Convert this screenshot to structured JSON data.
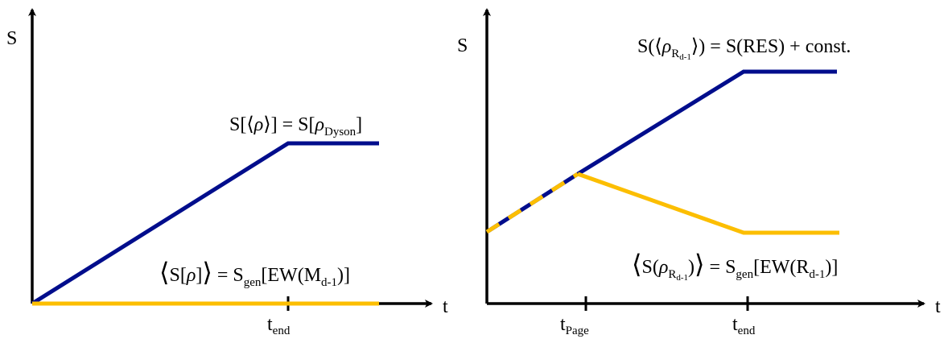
{
  "colors": {
    "axis": "#000000",
    "blue": "#000d8c",
    "gold": "#fcbe00"
  },
  "left_panel": {
    "y_axis_label": "S",
    "x_axis_label": "t",
    "tick_label": {
      "main": "t",
      "sub": "end"
    },
    "blue_label": {
      "a": "S[⟨",
      "rho": "ρ",
      "b": "⟩] = S[",
      "rho2": "ρ",
      "sub": "Dyson",
      "c": "]"
    },
    "gold_label": {
      "open": "⟨",
      "a": "S[",
      "rho": "ρ",
      "b": "]",
      "close": "⟩",
      "c": " = S",
      "sub1": "gen",
      "d": "[EW(M",
      "sub2": "d-1",
      "e": ")]"
    }
  },
  "right_panel": {
    "y_axis_label": "S",
    "x_axis_label": "t",
    "tick_page": {
      "main": "t",
      "sub": "Page"
    },
    "tick_end": {
      "main": "t",
      "sub": "end"
    },
    "blue_label": {
      "a": "S(⟨",
      "rho": "ρ",
      "sub1": "R",
      "subsub": "d-1",
      "b": "⟩) = S(RES) + const."
    },
    "gold_label": {
      "open": "⟨",
      "a": "S(",
      "rho": "ρ",
      "sub1": "R",
      "subsub": "d-1",
      "b": ")",
      "close": "⟩",
      "c": " = S",
      "sub2": "gen",
      "d": "[EW(R",
      "sub3": "d-1",
      "e": ")]"
    }
  }
}
